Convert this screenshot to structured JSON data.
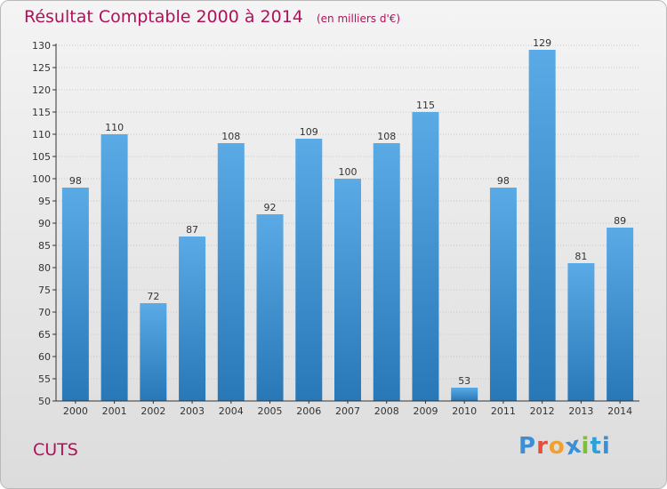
{
  "colors": {
    "title": "#b0115a",
    "bar_light": "#5aaae6",
    "bar_dark": "#2878b8",
    "grid": "#c8c8c8",
    "axis": "#333333",
    "logo": [
      "#3b8fd6",
      "#e94e3c",
      "#f0a030",
      "#3b8fd6",
      "#7cbf3a",
      "#2da0d8"
    ]
  },
  "commune": "CUTS",
  "logo_text": "Proxiti",
  "chart_data": {
    "type": "bar",
    "title": "Résultat Comptable 2000 à 2014",
    "subtitle": "(en milliers d'€)",
    "xlabel": "",
    "ylabel": "",
    "categories": [
      "2000",
      "2001",
      "2002",
      "2003",
      "2004",
      "2005",
      "2006",
      "2007",
      "2008",
      "2009",
      "2010",
      "2011",
      "2012",
      "2013",
      "2014"
    ],
    "values": [
      98,
      110,
      72,
      87,
      108,
      92,
      109,
      100,
      108,
      115,
      53,
      98,
      129,
      81,
      89
    ],
    "ylim": [
      50,
      130
    ],
    "yticks": [
      50,
      55,
      60,
      65,
      70,
      75,
      80,
      85,
      90,
      95,
      100,
      105,
      110,
      115,
      120,
      125,
      130
    ],
    "grid": true,
    "legend": "none"
  }
}
